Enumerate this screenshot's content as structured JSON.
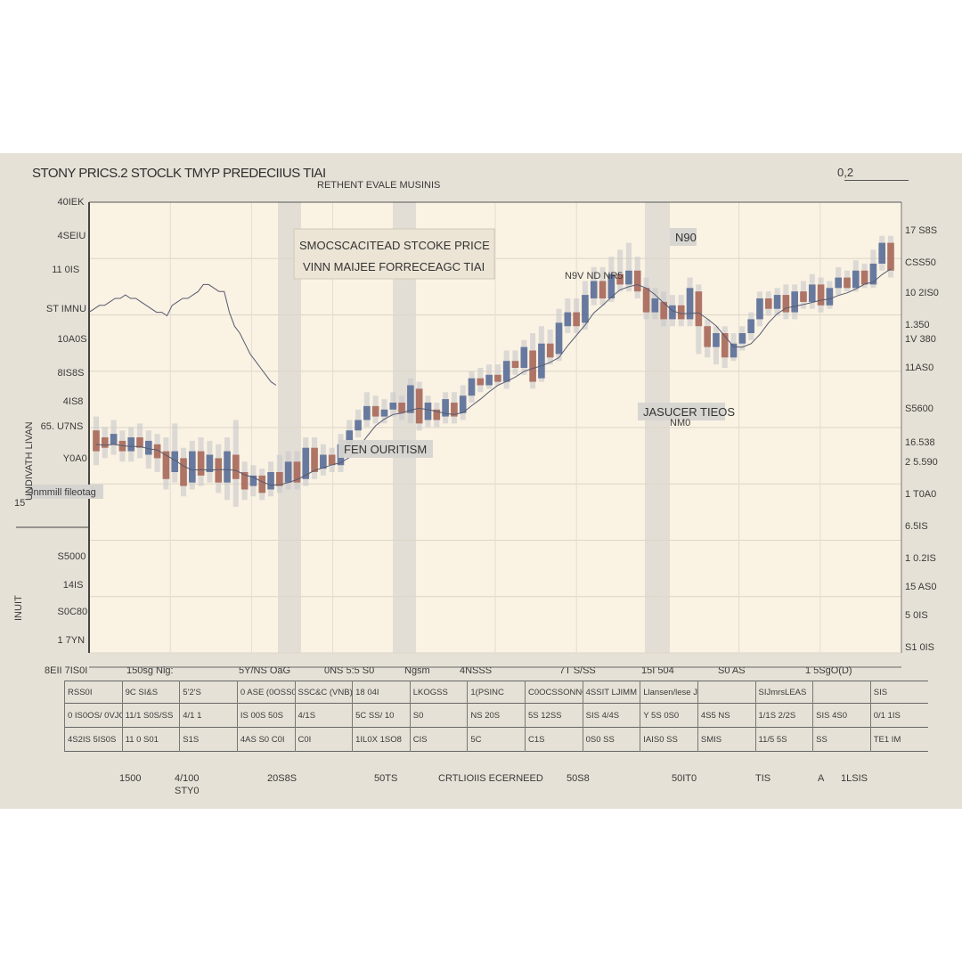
{
  "header": {
    "title": "STONY PRICS.2 STOCLK  TMYP PREDECIIUS  TIAI",
    "subtitle": "RETHENT EVALE MUSINIS",
    "corner": "0,2"
  },
  "annotations": {
    "box1_line1": "SMOCSCACITEAD STCOKE PRICE",
    "box1_line2": "VINN MAIJEE FORRECEAGC TIAI",
    "box2": "FEN OURITISM",
    "box3": "JASUCER TIEOS",
    "box3_small": "NM0",
    "box4": "N90",
    "label_mid": "N9V ND NR5",
    "label_left": "Jnmmill fileotag"
  },
  "axis": {
    "y_left": [
      "40IEK",
      "4SEIU",
      "11 0IS",
      "ST IMNU",
      "10A0S",
      "8IS8S",
      "4IS8",
      "65. U7NS",
      "Y0A0",
      "15",
      "S5000",
      "14IS",
      "S0C80",
      "1 7YN"
    ],
    "y_right": [
      "17 S8S",
      "CSS50",
      "10 2IS0",
      "1.350",
      "1V 380",
      "11AS0",
      "S5600",
      "16.538",
      "2 5.590",
      "1 T0A0",
      "6.5IS",
      "1 0.2IS",
      "15 AS0",
      "5 0IS",
      "S1 0IS"
    ],
    "y_left_title": "UNDIVATH LIVAN",
    "y_left_title2": "INUIT",
    "x_labels": [
      "8EII 7IS0I",
      "150sg Nig:",
      "5Y/NS OaG",
      "0NS 5:5 S0",
      "Ngsm",
      "4NSSS",
      "7T S/SS",
      "15I 504",
      "S0 AS",
      "1 5SgO(D)"
    ]
  },
  "table": {
    "rows": [
      [
        "RSS0I",
        "9C SI&S",
        "5'2'S",
        "0 ASE (0OSS0USE",
        "SSC&C (VNB)",
        "18 04I",
        "LKOGSS",
        "1(PSINC",
        "C0OCSSONNOR N4NS",
        "4SSIT LJIMM",
        "Llansen/lese JC 1 200s",
        "",
        "SIJmrsLEAS",
        "",
        "SIS"
      ],
      [
        "0 IS0OS/ 0VJO00SS",
        "11/1 S0S/SS",
        "4/1 1",
        "IS 00S 50S",
        "4/1S",
        "5C SS/ 10",
        "S0",
        "NS 20S",
        "5S 12SS",
        "SIS 4/4S",
        "Y 5S 0S0",
        "4S5 NS",
        "1/1S 2/2S",
        "SIS 4S0",
        "0/1 1IS"
      ],
      [
        "4S2IS 5IS0S",
        "11 0 S01",
        "S1S",
        "4AS S0  C0I",
        "C0I",
        "1IL0X 1SO8",
        "CIS",
        "5C",
        "C1S",
        "0S0 SS",
        "IAIS0 SS",
        "SMIS",
        "11/5 5S",
        "SS",
        "TE1 IM"
      ]
    ]
  },
  "footer": [
    "1500",
    "4/100",
    "STY0",
    "20S8S",
    "50TS",
    "CRTLIOIIS ECERNEED",
    "50S8",
    "50IT0",
    "TIS",
    "A",
    "1LSIS"
  ],
  "colors": {
    "background": "#e6e1d6",
    "plot": "#faf2e3",
    "up_candle": "#5a6e98",
    "down_candle": "#a8685a",
    "shade": "#d8d5cf",
    "line": "#565a70"
  },
  "chart_data": {
    "type": "candlestick",
    "title": "STONY PRICS.2 STOCLK  TMYP PREDECIIUS  TIAI",
    "subtitle": "RETHENT EVALE MUSINIS",
    "ylim": [
      0,
      100
    ],
    "grid": true,
    "candles": [
      {
        "open": 42,
        "close": 36,
        "high": 46,
        "low": 32
      },
      {
        "open": 40,
        "close": 37,
        "high": 43,
        "low": 34
      },
      {
        "open": 38,
        "close": 41,
        "high": 45,
        "low": 35
      },
      {
        "open": 39,
        "close": 36,
        "high": 42,
        "low": 33
      },
      {
        "open": 36,
        "close": 40,
        "high": 43,
        "low": 33
      },
      {
        "open": 40,
        "close": 37,
        "high": 44,
        "low": 34
      },
      {
        "open": 35,
        "close": 39,
        "high": 42,
        "low": 31
      },
      {
        "open": 38,
        "close": 34,
        "high": 41,
        "low": 30
      },
      {
        "open": 36,
        "close": 28,
        "high": 40,
        "low": 25
      },
      {
        "open": 30,
        "close": 36,
        "high": 44,
        "low": 27
      },
      {
        "open": 34,
        "close": 26,
        "high": 37,
        "low": 23
      },
      {
        "open": 27,
        "close": 36,
        "high": 39,
        "low": 25
      },
      {
        "open": 36,
        "close": 29,
        "high": 40,
        "low": 26
      },
      {
        "open": 30,
        "close": 35,
        "high": 39,
        "low": 27
      },
      {
        "open": 34,
        "close": 27,
        "high": 38,
        "low": 24
      },
      {
        "open": 27,
        "close": 36,
        "high": 40,
        "low": 22
      },
      {
        "open": 35,
        "close": 28,
        "high": 45,
        "low": 20
      },
      {
        "open": 30,
        "close": 25,
        "high": 33,
        "low": 22
      },
      {
        "open": 26,
        "close": 29,
        "high": 32,
        "low": 23
      },
      {
        "open": 29,
        "close": 24,
        "high": 31,
        "low": 22
      },
      {
        "open": 25,
        "close": 30,
        "high": 33,
        "low": 23
      },
      {
        "open": 30,
        "close": 26,
        "high": 35,
        "low": 24
      },
      {
        "open": 27,
        "close": 33,
        "high": 36,
        "low": 25
      },
      {
        "open": 33,
        "close": 27,
        "high": 36,
        "low": 25
      },
      {
        "open": 28,
        "close": 37,
        "high": 40,
        "low": 26
      },
      {
        "open": 37,
        "close": 30,
        "high": 40,
        "low": 28
      },
      {
        "open": 31,
        "close": 35,
        "high": 38,
        "low": 29
      },
      {
        "open": 35,
        "close": 32,
        "high": 37,
        "low": 30
      },
      {
        "open": 32,
        "close": 38,
        "high": 41,
        "low": 30
      },
      {
        "open": 37,
        "close": 42,
        "high": 45,
        "low": 35
      },
      {
        "open": 42,
        "close": 45,
        "high": 48,
        "low": 40
      },
      {
        "open": 45,
        "close": 49,
        "high": 53,
        "low": 43
      },
      {
        "open": 49,
        "close": 46,
        "high": 52,
        "low": 44
      },
      {
        "open": 46,
        "close": 48,
        "high": 51,
        "low": 44
      },
      {
        "open": 48,
        "close": 50,
        "high": 53,
        "low": 46
      },
      {
        "open": 50,
        "close": 47,
        "high": 52,
        "low": 45
      },
      {
        "open": 47,
        "close": 55,
        "high": 57,
        "low": 44
      },
      {
        "open": 54,
        "close": 44,
        "high": 56,
        "low": 42
      },
      {
        "open": 45,
        "close": 50,
        "high": 52,
        "low": 43
      },
      {
        "open": 48,
        "close": 45,
        "high": 50,
        "low": 43
      },
      {
        "open": 46,
        "close": 51,
        "high": 53,
        "low": 44
      },
      {
        "open": 50,
        "close": 46,
        "high": 53,
        "low": 44
      },
      {
        "open": 47,
        "close": 52,
        "high": 55,
        "low": 45
      },
      {
        "open": 52,
        "close": 57,
        "high": 59,
        "low": 50
      },
      {
        "open": 57,
        "close": 55,
        "high": 60,
        "low": 53
      },
      {
        "open": 55,
        "close": 58,
        "high": 61,
        "low": 54
      },
      {
        "open": 58,
        "close": 56,
        "high": 61,
        "low": 55
      },
      {
        "open": 56,
        "close": 62,
        "high": 65,
        "low": 54
      },
      {
        "open": 62,
        "close": 60,
        "high": 65,
        "low": 58
      },
      {
        "open": 60,
        "close": 66,
        "high": 68,
        "low": 58
      },
      {
        "open": 65,
        "close": 56,
        "high": 70,
        "low": 54
      },
      {
        "open": 57,
        "close": 67,
        "high": 72,
        "low": 56
      },
      {
        "open": 67,
        "close": 63,
        "high": 71,
        "low": 61
      },
      {
        "open": 64,
        "close": 73,
        "high": 77,
        "low": 62
      },
      {
        "open": 72,
        "close": 76,
        "high": 80,
        "low": 70
      },
      {
        "open": 76,
        "close": 72,
        "high": 80,
        "low": 70
      },
      {
        "open": 73,
        "close": 81,
        "high": 85,
        "low": 71
      },
      {
        "open": 80,
        "close": 85,
        "high": 89,
        "low": 78
      },
      {
        "open": 85,
        "close": 80,
        "high": 89,
        "low": 78
      },
      {
        "open": 80,
        "close": 87,
        "high": 92,
        "low": 79
      },
      {
        "open": 87,
        "close": 84,
        "high": 94,
        "low": 82
      },
      {
        "open": 84,
        "close": 88,
        "high": 96,
        "low": 82
      },
      {
        "open": 88,
        "close": 82,
        "high": 92,
        "low": 80
      },
      {
        "open": 83,
        "close": 76,
        "high": 86,
        "low": 74
      },
      {
        "open": 76,
        "close": 80,
        "high": 83,
        "low": 74
      },
      {
        "open": 79,
        "close": 74,
        "high": 82,
        "low": 72
      },
      {
        "open": 74,
        "close": 78,
        "high": 81,
        "low": 72
      },
      {
        "open": 78,
        "close": 74,
        "high": 81,
        "low": 72
      },
      {
        "open": 74,
        "close": 83,
        "high": 86,
        "low": 72
      },
      {
        "open": 82,
        "close": 72,
        "high": 84,
        "low": 64
      },
      {
        "open": 72,
        "close": 66,
        "high": 74,
        "low": 63
      },
      {
        "open": 66,
        "close": 70,
        "high": 72,
        "low": 61
      },
      {
        "open": 70,
        "close": 63,
        "high": 72,
        "low": 60
      },
      {
        "open": 63,
        "close": 67,
        "high": 70,
        "low": 62
      },
      {
        "open": 67,
        "close": 70,
        "high": 72,
        "low": 65
      },
      {
        "open": 70,
        "close": 74,
        "high": 76,
        "low": 68
      },
      {
        "open": 74,
        "close": 80,
        "high": 82,
        "low": 72
      },
      {
        "open": 80,
        "close": 77,
        "high": 82,
        "low": 75
      },
      {
        "open": 77,
        "close": 81,
        "high": 83,
        "low": 75
      },
      {
        "open": 81,
        "close": 76,
        "high": 84,
        "low": 74
      },
      {
        "open": 76,
        "close": 82,
        "high": 84,
        "low": 74
      },
      {
        "open": 82,
        "close": 79,
        "high": 85,
        "low": 77
      },
      {
        "open": 79,
        "close": 84,
        "high": 87,
        "low": 77
      },
      {
        "open": 84,
        "close": 78,
        "high": 86,
        "low": 76
      },
      {
        "open": 78,
        "close": 83,
        "high": 85,
        "low": 77
      },
      {
        "open": 83,
        "close": 86,
        "high": 89,
        "low": 81
      },
      {
        "open": 86,
        "close": 83,
        "high": 88,
        "low": 82
      },
      {
        "open": 83,
        "close": 88,
        "high": 91,
        "low": 82
      },
      {
        "open": 88,
        "close": 84,
        "high": 90,
        "low": 83
      },
      {
        "open": 84,
        "close": 90,
        "high": 94,
        "low": 83
      },
      {
        "open": 90,
        "close": 96,
        "high": 98,
        "low": 88
      },
      {
        "open": 96,
        "close": 88,
        "high": 98,
        "low": 86
      }
    ],
    "forecast_line": [
      76,
      77,
      78,
      78,
      79,
      80,
      80,
      81,
      80,
      80,
      79,
      78,
      77,
      76,
      76,
      75,
      78,
      79,
      80,
      80,
      81,
      82,
      84,
      84,
      83,
      82,
      82,
      76,
      72,
      70,
      67,
      64,
      62,
      60,
      58,
      56,
      55
    ]
  }
}
